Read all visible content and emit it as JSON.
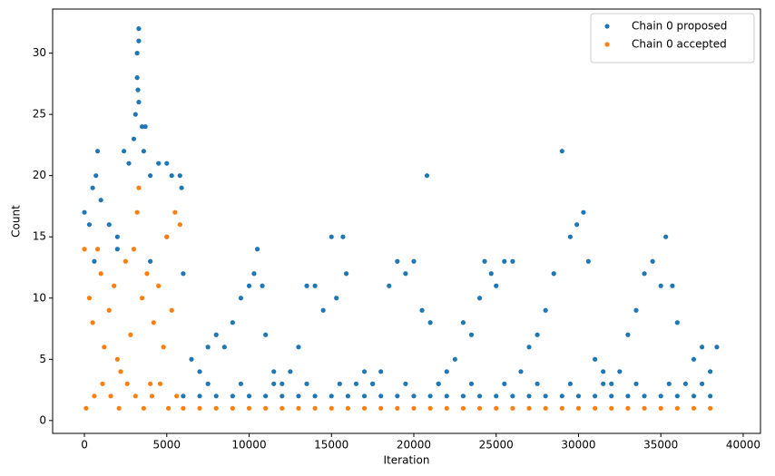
{
  "chart_data": {
    "type": "scatter",
    "x_label": "Iteration",
    "y_label": "Count",
    "xlim": [
      -1930,
      41050
    ],
    "ylim": [
      -1.05,
      33.6
    ],
    "xticks": [
      0,
      5000,
      10000,
      15000,
      20000,
      25000,
      30000,
      35000,
      40000
    ],
    "yticks": [
      0,
      5,
      10,
      15,
      20,
      25,
      30
    ],
    "grid": false,
    "legend": "upper right",
    "series": [
      {
        "name": "Chain 0 proposed",
        "color": "#1f77b4",
        "x": [
          0,
          300,
          500,
          700,
          800,
          1000,
          1500,
          2000,
          2400,
          2700,
          3000,
          3200,
          3300,
          3300,
          3200,
          3250,
          3300,
          3100,
          3500,
          3700,
          3600,
          4000,
          4500,
          5000,
          5300,
          5800,
          5900,
          600,
          2000,
          4000,
          5000,
          6000,
          6500,
          7000,
          7500,
          8000,
          8500,
          9000,
          9500,
          10000,
          10300,
          10500,
          10800,
          11000,
          11500,
          12000,
          12500,
          13000,
          13500,
          14000,
          14500,
          15000,
          15300,
          15700,
          15900,
          16500,
          17000,
          17500,
          18000,
          18500,
          19000,
          19500,
          20000,
          20500,
          20800,
          21000,
          21500,
          22000,
          22500,
          23000,
          23500,
          24000,
          24300,
          24700,
          25000,
          25500,
          26000,
          26500,
          27000,
          27500,
          28000,
          28500,
          29000,
          29500,
          29900,
          30300,
          30600,
          31000,
          31500,
          32000,
          32500,
          33000,
          33500,
          34000,
          34500,
          35000,
          35300,
          35700,
          36000,
          36500,
          37000,
          37500,
          38000,
          38400,
          6000,
          7000,
          8000,
          9000,
          10000,
          11000,
          12000,
          13000,
          14000,
          15000,
          16000,
          17000,
          18000,
          19000,
          20000,
          21000,
          22000,
          23000,
          24000,
          25000,
          26000,
          27000,
          28000,
          29000,
          30000,
          31000,
          32000,
          33000,
          34000,
          35000,
          36000,
          37000,
          38000,
          7500,
          9500,
          11500,
          13500,
          15500,
          17500,
          19500,
          21500,
          23500,
          25500,
          27500,
          29500,
          31500,
          33500,
          35500,
          37500
        ],
        "values": [
          17,
          16,
          19,
          20,
          22,
          18,
          16,
          15,
          22,
          21,
          23,
          30,
          32,
          31,
          28,
          27,
          26,
          25,
          24,
          24,
          22,
          20,
          21,
          21,
          20,
          20,
          19,
          13,
          14,
          13,
          15,
          12,
          5,
          4,
          6,
          7,
          6,
          8,
          10,
          11,
          12,
          14,
          11,
          7,
          4,
          3,
          4,
          6,
          11,
          11,
          9,
          15,
          10,
          15,
          12,
          3,
          4,
          3,
          4,
          11,
          13,
          12,
          13,
          9,
          20,
          8,
          3,
          4,
          5,
          8,
          7,
          10,
          13,
          12,
          11,
          13,
          13,
          4,
          6,
          7,
          9,
          12,
          22,
          15,
          16,
          17,
          13,
          5,
          4,
          3,
          4,
          7,
          9,
          12,
          13,
          11,
          15,
          11,
          8,
          3,
          5,
          6,
          4,
          6,
          2,
          2,
          2,
          2,
          2,
          2,
          2,
          2,
          2,
          2,
          2,
          2,
          2,
          2,
          2,
          2,
          2,
          2,
          2,
          2,
          2,
          2,
          2,
          2,
          2,
          2,
          2,
          2,
          2,
          2,
          2,
          2,
          2,
          3,
          3,
          3,
          3,
          3,
          3,
          3,
          3,
          3,
          3,
          3,
          3,
          3,
          3,
          3,
          3
        ]
      },
      {
        "name": "Chain 0 accepted",
        "color": "#ff7f0e",
        "x": [
          0,
          300,
          500,
          800,
          1000,
          1200,
          1500,
          1800,
          2000,
          2200,
          2500,
          2800,
          3000,
          3200,
          3300,
          3500,
          3800,
          4000,
          4200,
          4500,
          4800,
          5000,
          5300,
          5500,
          5800,
          6000,
          100,
          600,
          1100,
          1600,
          2100,
          2600,
          3100,
          3600,
          4100,
          4600,
          5100,
          5600,
          7000,
          8000,
          9000,
          10000,
          11000,
          12000,
          13000,
          14000,
          15000,
          16000,
          17000,
          18000,
          19000,
          20000,
          21000,
          22000,
          23000,
          24000,
          25000,
          26000,
          27000,
          28000,
          29000,
          30000,
          31000,
          32000,
          33000,
          34000,
          35000,
          36000,
          37000,
          38000
        ],
        "values": [
          14,
          10,
          8,
          14,
          12,
          6,
          9,
          11,
          5,
          4,
          13,
          7,
          14,
          17,
          19,
          10,
          12,
          3,
          8,
          11,
          6,
          15,
          9,
          17,
          16,
          1,
          1,
          2,
          3,
          2,
          1,
          3,
          2,
          1,
          2,
          3,
          1,
          2,
          1,
          1,
          1,
          1,
          1,
          1,
          1,
          1,
          1,
          1,
          1,
          1,
          1,
          1,
          1,
          1,
          1,
          1,
          1,
          1,
          1,
          1,
          1,
          1,
          1,
          1,
          1,
          1,
          1,
          1,
          1,
          1
        ]
      }
    ]
  }
}
